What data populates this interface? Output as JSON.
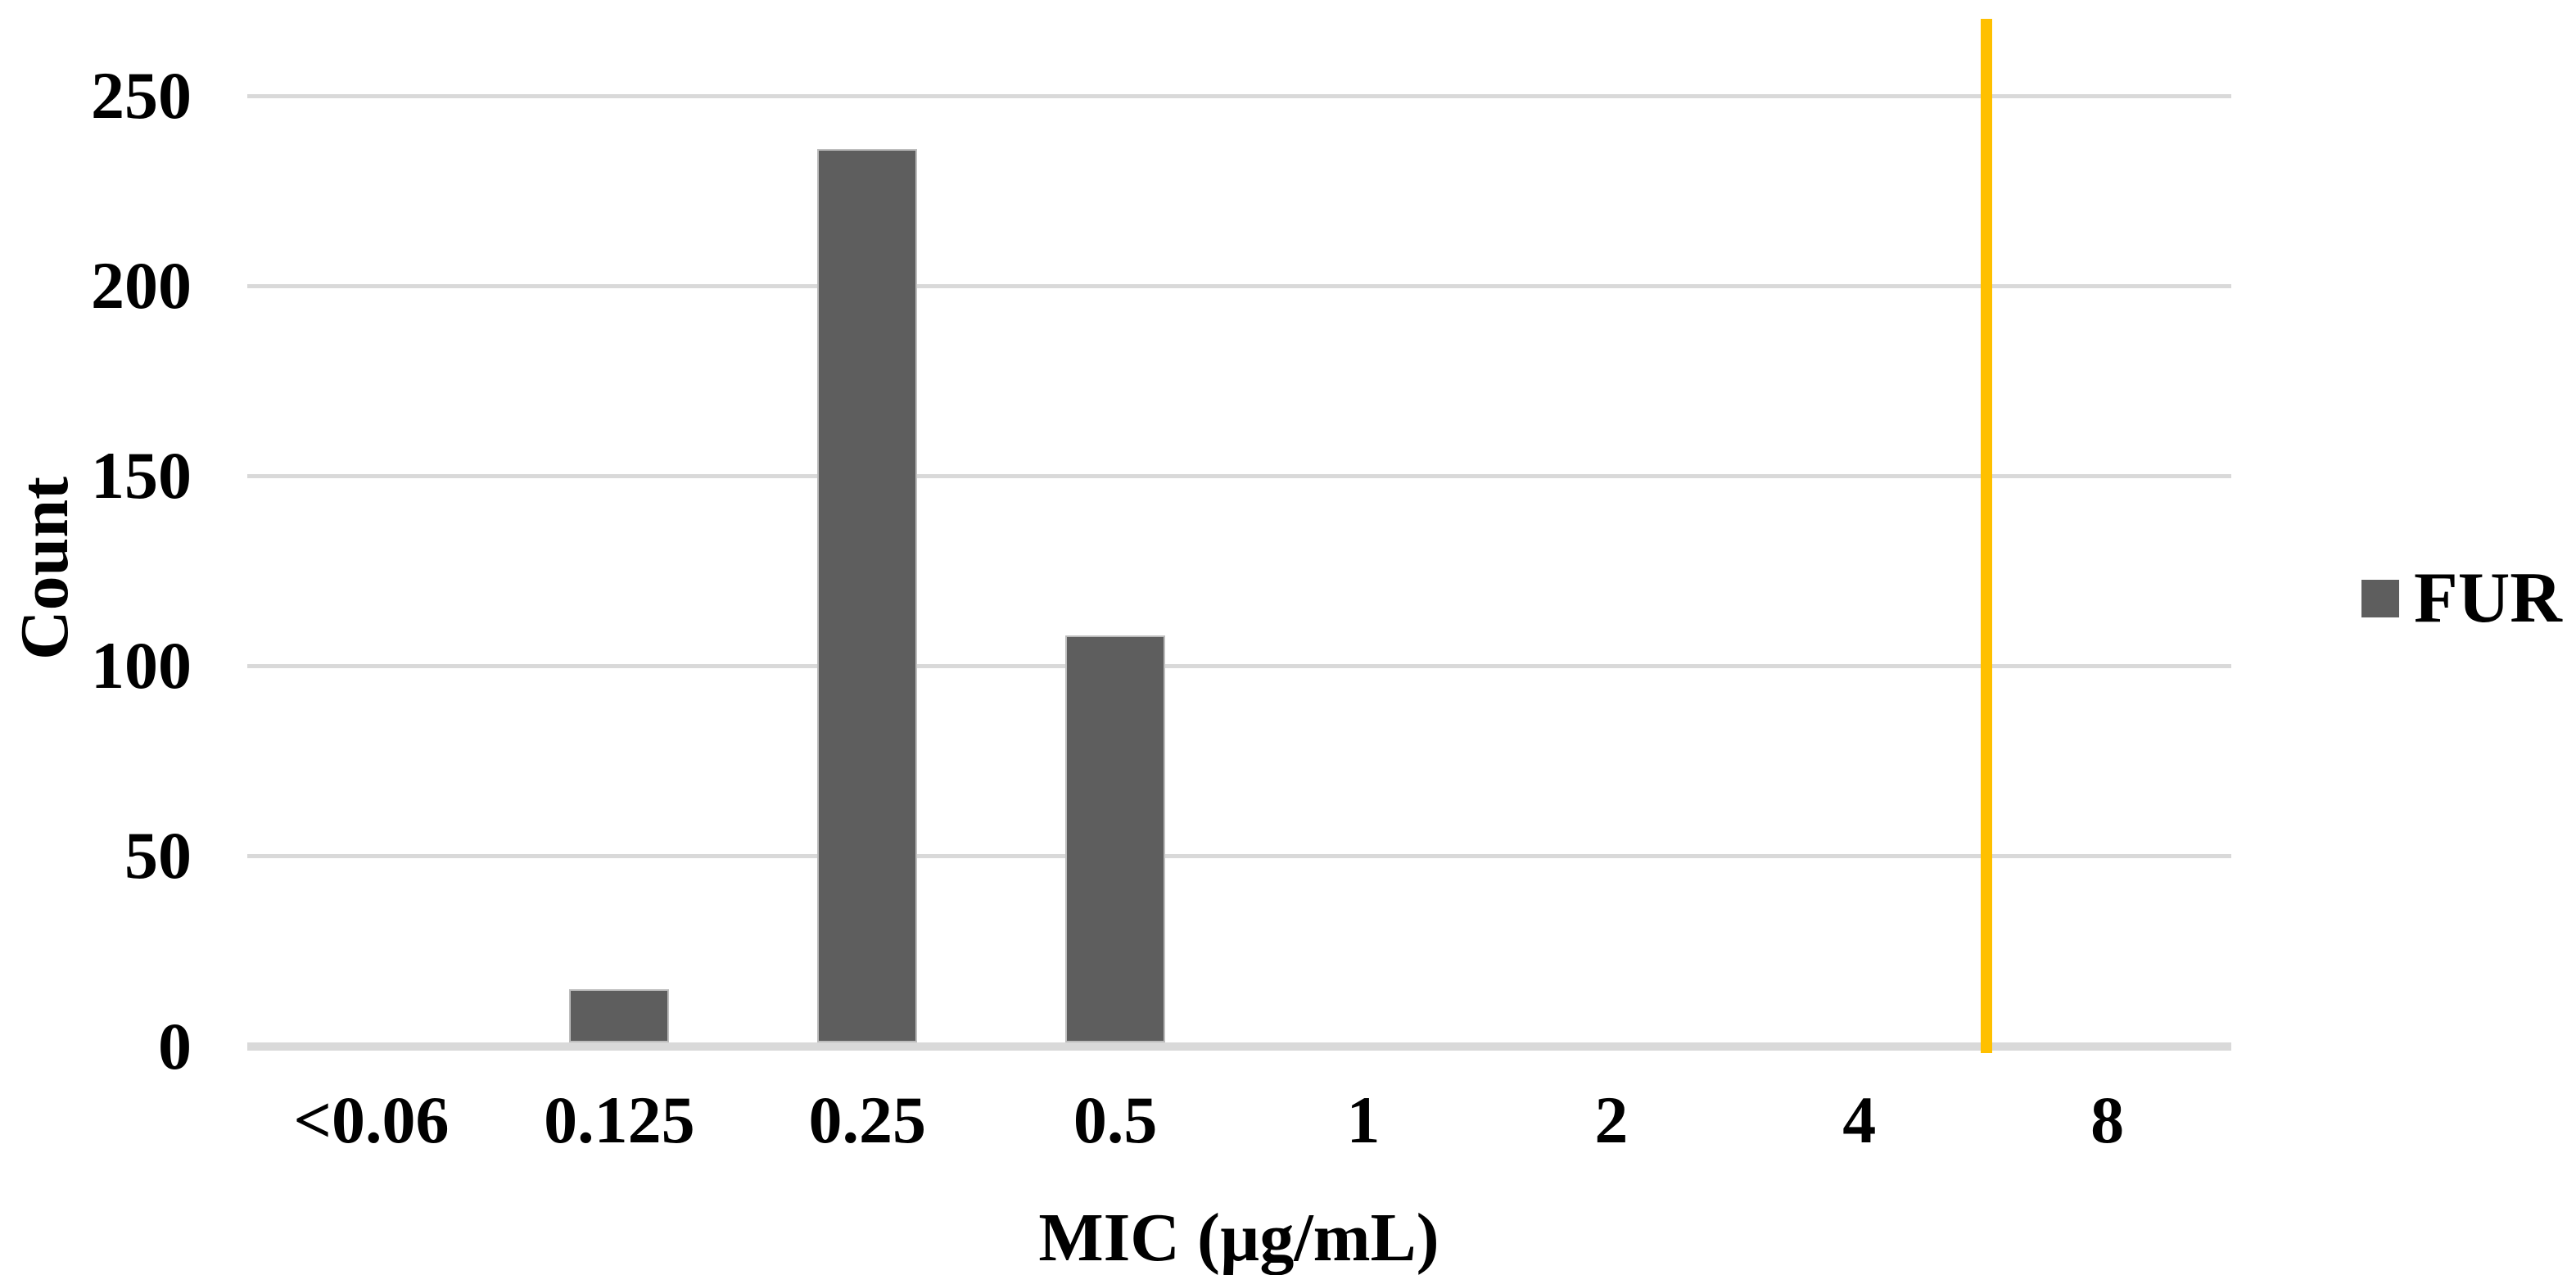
{
  "chart_data": {
    "type": "bar",
    "title": "",
    "xlabel": "MIC (µg/mL)",
    "ylabel": "Count",
    "categories": [
      "<0.06",
      "0.125",
      "0.25",
      "0.5",
      "1",
      "2",
      "4",
      "8"
    ],
    "series": [
      {
        "name": "FUR",
        "color": "#5e5e5e",
        "values": [
          0,
          15,
          236,
          108,
          0,
          0,
          0,
          0
        ]
      }
    ],
    "yticks": [
      0,
      50,
      100,
      150,
      200,
      250
    ],
    "ylim": [
      0,
      270
    ],
    "grid": true,
    "gridline_color": "#d9d9d9",
    "axis_line_color": "#d9d9d9",
    "legend_position": "right",
    "legend_items": [
      {
        "label": "FUR",
        "color": "#5e5e5e"
      }
    ],
    "threshold_line": {
      "color": "#ffc000",
      "between_categories": [
        "4",
        "8"
      ],
      "orientation": "vertical"
    }
  }
}
